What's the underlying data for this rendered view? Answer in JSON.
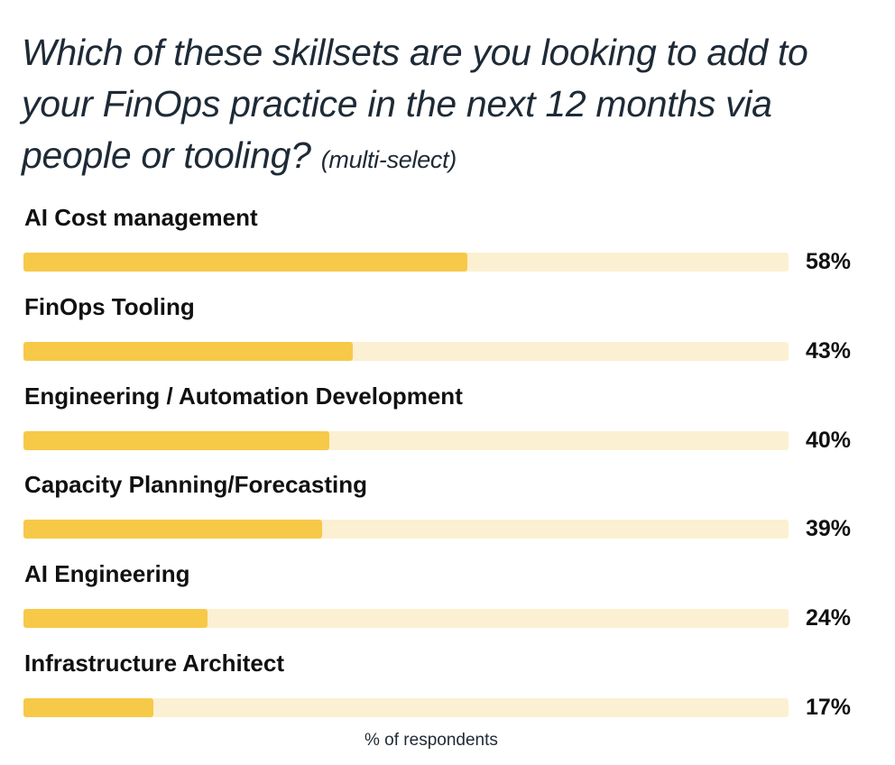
{
  "chart_data": {
    "type": "bar",
    "orientation": "horizontal",
    "title": "Which of these skillsets are you looking to add to your FinOps practice in the next 12 months via people or tooling?",
    "subtitle": "(multi-select)",
    "categories": [
      "AI Cost management",
      "FinOps Tooling",
      "Engineering / Automation Development",
      "Capacity Planning/Forecasting",
      "AI Engineering",
      "Infrastructure Architect"
    ],
    "values": [
      58,
      43,
      40,
      39,
      24,
      17
    ],
    "value_labels": [
      "58%",
      "43%",
      "40%",
      "39%",
      "24%",
      "17%"
    ],
    "xlabel": "% of respondents",
    "xlim": [
      0,
      100
    ],
    "grid": false,
    "colors": {
      "fill": "#f7c948",
      "track": "#fcf0d2"
    }
  }
}
